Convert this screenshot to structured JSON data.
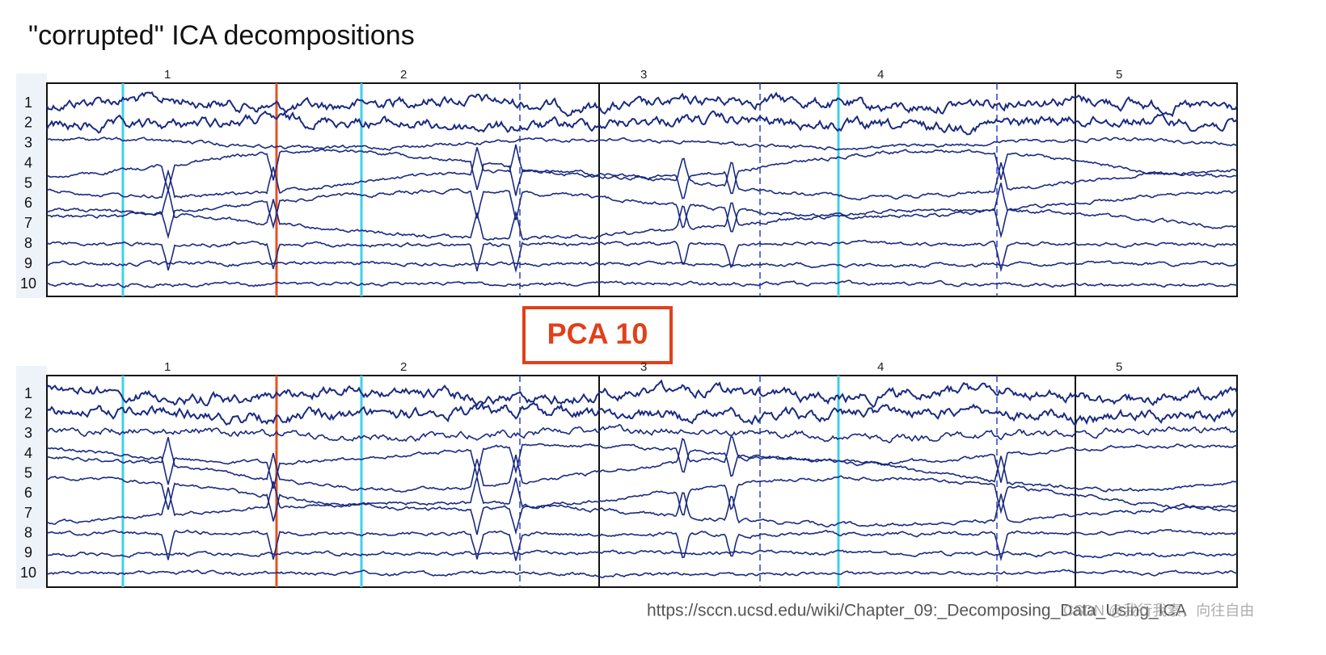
{
  "title": "\"corrupted\" ICA decompositions",
  "panels": [
    {
      "channels": [
        1,
        2,
        3,
        4,
        5,
        6,
        7,
        8,
        9,
        10
      ],
      "time_labels": [
        1,
        2,
        3,
        4,
        5
      ]
    },
    {
      "channels": [
        1,
        2,
        3,
        4,
        5,
        6,
        7,
        8,
        9,
        10
      ],
      "time_labels": [
        1,
        2,
        3,
        4,
        5
      ]
    }
  ],
  "label_box": "PCA 10",
  "source_url": "https://sccn.ucsd.edu/wiki/Chapter_09:_Decomposing_Data_Using_ICA",
  "watermark": "CSDN @我行我素，向往自由"
}
